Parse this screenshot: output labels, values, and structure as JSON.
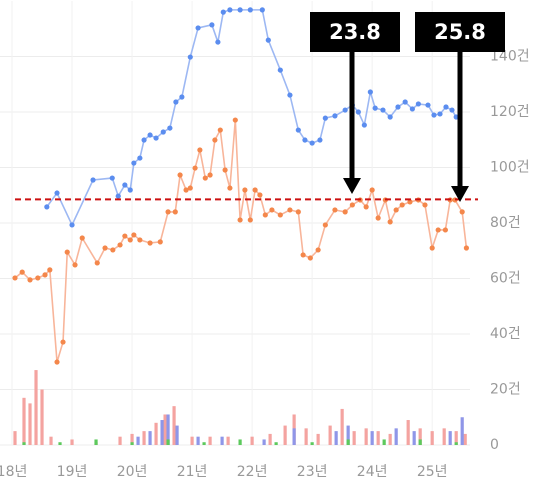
{
  "chart_data": {
    "type": "line",
    "annotations": [
      "23.8",
      "25.8"
    ],
    "xlim": [
      17.8,
      25.63
    ],
    "ylim": [
      0,
      160
    ],
    "grid": true,
    "reference_line": {
      "value": 88.5,
      "color": "#cc1111"
    },
    "xticks": [
      {
        "value": 18,
        "label": "18년"
      },
      {
        "value": 19,
        "label": "19년"
      },
      {
        "value": 20,
        "label": "20년"
      },
      {
        "value": 21,
        "label": "21년"
      },
      {
        "value": 22,
        "label": "22년"
      },
      {
        "value": 23,
        "label": "23년"
      },
      {
        "value": 24,
        "label": "24년"
      },
      {
        "value": 25,
        "label": "25년"
      }
    ],
    "yticks": [
      0,
      {
        "value": 20,
        "label": "20건"
      },
      {
        "value": 40,
        "label": "40건"
      },
      {
        "value": 60,
        "label": "60건"
      },
      {
        "value": 80,
        "label": "80건"
      },
      {
        "value": 100,
        "label": "100건"
      },
      {
        "value": 120,
        "label": "120건"
      },
      {
        "value": 140,
        "label": "140건"
      }
    ],
    "series": [
      {
        "type": "bar",
        "color": "#f4a3a0",
        "x": [
          18.05,
          18.2,
          18.3,
          18.4,
          18.5,
          18.65,
          19.0,
          19.4,
          19.8,
          20.0,
          20.2,
          20.4,
          20.55,
          20.7,
          21.0,
          21.3,
          21.6,
          22.0,
          22.3,
          22.55,
          22.7,
          22.9,
          23.1,
          23.3,
          23.5,
          23.7,
          23.9,
          24.1,
          24.3,
          24.6,
          24.8,
          25.0,
          25.2,
          25.4,
          25.55
        ],
        "values": [
          5,
          17,
          15,
          27,
          20,
          3,
          2,
          1,
          3,
          4,
          5,
          8,
          11,
          14,
          3,
          3,
          3,
          3,
          4,
          7,
          11,
          6,
          4,
          7,
          13,
          5,
          6,
          5,
          4,
          9,
          6,
          5,
          6,
          5,
          4
        ]
      },
      {
        "type": "bar",
        "color": "#8f96e8",
        "x": [
          20.1,
          20.3,
          20.5,
          20.6,
          20.75,
          21.1,
          21.5,
          22.2,
          22.7,
          23.4,
          23.6,
          24.0,
          24.4,
          24.7,
          25.3,
          25.5
        ],
        "values": [
          3,
          5,
          9,
          11,
          7,
          3,
          3,
          2,
          6,
          5,
          7,
          5,
          6,
          5,
          5,
          10
        ]
      },
      {
        "type": "bar",
        "color": "#5cc95c",
        "x": [
          18.2,
          18.8,
          19.4,
          20.0,
          20.6,
          21.2,
          21.8,
          22.4,
          23.0,
          23.6,
          24.2,
          24.8,
          25.4
        ],
        "values": [
          1,
          1,
          2,
          1,
          2,
          1,
          2,
          1,
          1,
          2,
          2,
          2,
          1
        ]
      },
      {
        "type": "line",
        "color": "#5b8def",
        "line_color": "#9db8f3",
        "x": [
          18.58,
          18.75,
          19.0,
          19.35,
          19.67,
          19.77,
          19.88,
          19.97,
          20.03,
          20.13,
          20.2,
          20.3,
          20.4,
          20.52,
          20.63,
          20.73,
          20.83,
          20.97,
          21.1,
          21.33,
          21.43,
          21.52,
          21.63,
          21.8,
          21.97,
          22.17,
          22.27,
          22.47,
          22.63,
          22.77,
          22.88,
          23.0,
          23.13,
          23.22,
          23.38,
          23.55,
          23.67,
          23.77,
          23.87,
          23.97,
          24.05,
          24.18,
          24.3,
          24.43,
          24.55,
          24.67,
          24.77,
          24.93,
          25.03,
          25.13,
          25.23,
          25.33,
          25.4
        ],
        "values": [
          85.8,
          90.8,
          79.3,
          95.5,
          96.2,
          89.7,
          93.7,
          91.9,
          101.6,
          103.4,
          109.9,
          111.7,
          110.6,
          112.8,
          114.2,
          123.6,
          125.4,
          139.8,
          150.3,
          151.4,
          145.2,
          156.0,
          156.8,
          156.8,
          156.8,
          156.8,
          145.9,
          135.1,
          126.1,
          113.5,
          109.9,
          108.8,
          109.9,
          117.8,
          118.6,
          120.7,
          122.5,
          120.0,
          115.3,
          127.2,
          121.4,
          120.7,
          118.2,
          121.8,
          123.6,
          121.1,
          122.9,
          122.5,
          118.9,
          119.3,
          121.8,
          120.7,
          118.2
        ]
      },
      {
        "type": "line",
        "color": "#f4874b",
        "line_color": "#f8b59a",
        "x": [
          18.05,
          18.17,
          18.3,
          18.43,
          18.55,
          18.63,
          18.75,
          18.85,
          18.92,
          19.05,
          19.17,
          19.42,
          19.55,
          19.68,
          19.8,
          19.88,
          19.97,
          20.03,
          20.13,
          20.3,
          20.47,
          20.6,
          20.72,
          20.8,
          20.9,
          20.97,
          21.05,
          21.13,
          21.22,
          21.3,
          21.38,
          21.47,
          21.55,
          21.63,
          21.72,
          21.8,
          21.88,
          21.97,
          22.05,
          22.13,
          22.22,
          22.33,
          22.47,
          22.63,
          22.77,
          22.85,
          22.97,
          23.1,
          23.22,
          23.38,
          23.55,
          23.67,
          23.8,
          23.9,
          24.0,
          24.1,
          24.22,
          24.3,
          24.4,
          24.5,
          24.63,
          24.77,
          24.88,
          25.0,
          25.1,
          25.22,
          25.3,
          25.38,
          25.5,
          25.57
        ],
        "values": [
          60.2,
          62.3,
          59.5,
          60.2,
          61.3,
          63.1,
          29.9,
          37.1,
          69.5,
          64.9,
          74.6,
          65.6,
          71.0,
          70.3,
          72.1,
          75.3,
          73.9,
          75.7,
          73.9,
          72.8,
          73.2,
          84.0,
          84.0,
          97.3,
          91.9,
          92.6,
          99.8,
          106.3,
          96.2,
          97.3,
          109.9,
          113.5,
          99.1,
          92.6,
          117.1,
          81.1,
          91.9,
          81.1,
          91.9,
          90.1,
          82.9,
          84.7,
          82.9,
          84.7,
          84.0,
          68.5,
          67.4,
          70.3,
          79.3,
          84.7,
          84.0,
          86.5,
          88.3,
          85.8,
          91.9,
          81.8,
          88.3,
          80.4,
          84.7,
          86.5,
          87.6,
          88.3,
          86.5,
          71.0,
          77.5,
          77.5,
          88.3,
          88.3,
          84.0,
          71.0
        ]
      }
    ]
  }
}
